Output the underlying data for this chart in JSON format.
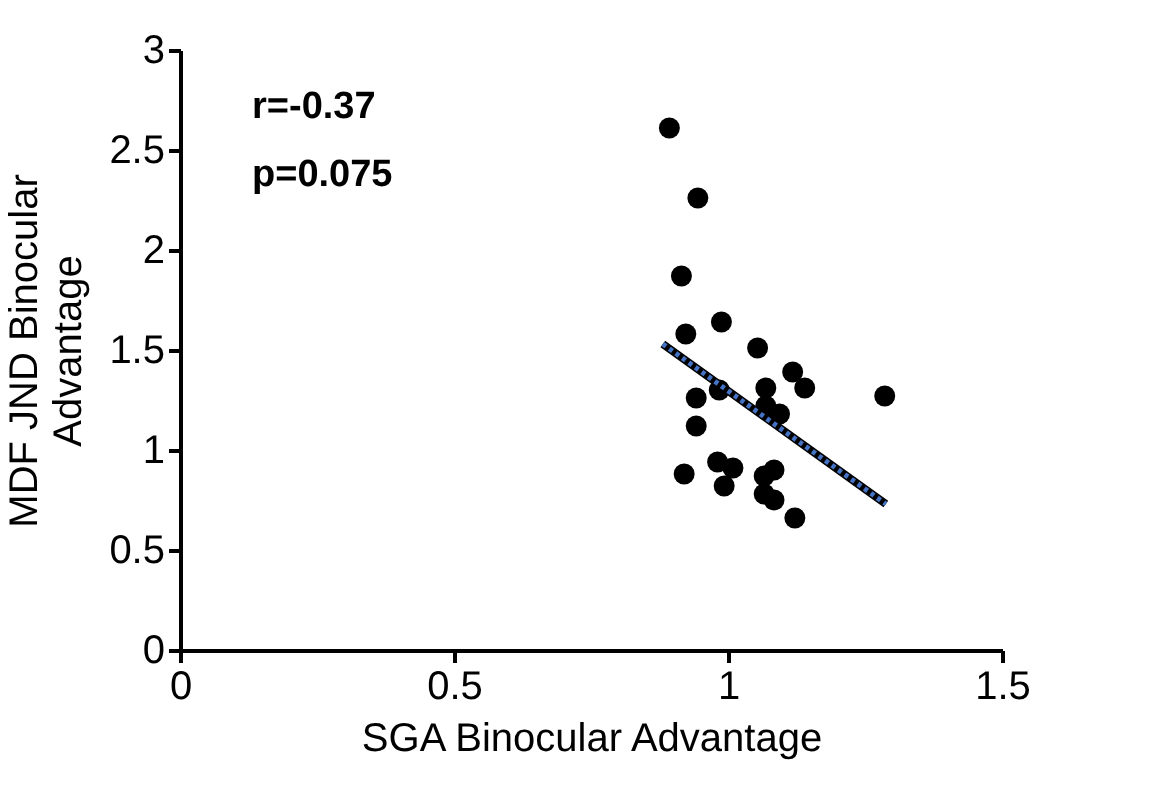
{
  "chart_data": {
    "type": "scatter",
    "xlabel": "SGA Binocular Advantage",
    "ylabel": "MDF JND Binocular\nAdvantage",
    "xlim": [
      0,
      1.5
    ],
    "xticks": [
      0,
      0.5,
      1,
      1.5
    ],
    "ylim": [
      0,
      3
    ],
    "yticks": [
      0,
      0.5,
      1,
      1.5,
      2,
      2.5,
      3
    ],
    "grid": false,
    "marker": "circle",
    "series": [
      {
        "type": "scatter",
        "color": "#000000",
        "x": [
          0.893,
          0.945,
          0.915,
          0.988,
          0.923,
          1.054,
          1.118,
          1.14,
          1.069,
          0.984,
          0.942,
          1.286,
          1.069,
          1.094,
          0.942,
          0.981,
          1.009,
          0.92,
          1.084,
          1.066,
          0.993,
          1.066,
          1.084,
          1.122
        ],
        "values": [
          2.61,
          2.26,
          1.87,
          1.64,
          1.58,
          1.51,
          1.39,
          1.31,
          1.31,
          1.3,
          1.26,
          1.27,
          1.22,
          1.18,
          1.12,
          0.94,
          0.91,
          0.88,
          0.9,
          0.87,
          0.82,
          0.78,
          0.75,
          0.66
        ]
      },
      {
        "type": "line",
        "color": "#4472c4",
        "line_style": "dotted",
        "marker": "none",
        "x": [
          0.881,
          1.288
        ],
        "values": [
          1.53,
          0.73
        ]
      }
    ],
    "annotations": [
      "r=-0.37",
      "p=0.075"
    ]
  }
}
